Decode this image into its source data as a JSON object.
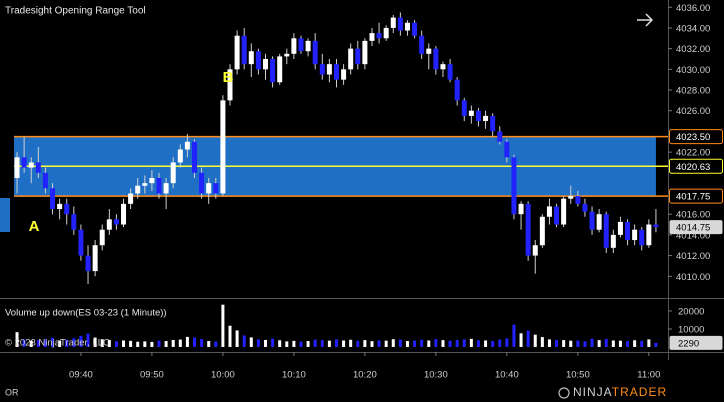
{
  "chart_data": {
    "type": "candlestick",
    "title": "Tradesight Opening Range Tool",
    "annotations": [
      "A",
      "B"
    ],
    "x": [
      571,
      572,
      573,
      574,
      575,
      576,
      577,
      578,
      579,
      580,
      581,
      582,
      583,
      584,
      585,
      586,
      587,
      588,
      589,
      590,
      591,
      592,
      593,
      594,
      595,
      596,
      597,
      598,
      599,
      600,
      601,
      602,
      603,
      604,
      605,
      606,
      607,
      608,
      609,
      610,
      611,
      612,
      613,
      614,
      615,
      616,
      617,
      618,
      619,
      620,
      621,
      622,
      623,
      624,
      625,
      626,
      627,
      628,
      629,
      630,
      631,
      632,
      633,
      634,
      635,
      636,
      637,
      638,
      639,
      640,
      641,
      642,
      643,
      644,
      645,
      646,
      647,
      648,
      649,
      650,
      651,
      652,
      653,
      654,
      655,
      656,
      657,
      658,
      659,
      660,
      661
    ],
    "xlim": [
      568.6,
      662.7
    ],
    "xticks": [
      {
        "value": 580,
        "label": "09:40"
      },
      {
        "value": 590,
        "label": "09:50"
      },
      {
        "value": 600,
        "label": "10:00"
      },
      {
        "value": 610,
        "label": "10:10"
      },
      {
        "value": 620,
        "label": "10:20"
      },
      {
        "value": 630,
        "label": "10:30"
      },
      {
        "value": 640,
        "label": "10:40"
      },
      {
        "value": 650,
        "label": "10:50"
      },
      {
        "value": 660,
        "label": "11:00"
      }
    ],
    "ylim": [
      4007.9,
      4036.7
    ],
    "yticks": [
      {
        "value": 4010,
        "label": "4010.00"
      },
      {
        "value": 4012,
        "label": "4012.00"
      },
      {
        "value": 4014,
        "label": "4014.00"
      },
      {
        "value": 4016,
        "label": "4016.00"
      },
      {
        "value": 4022,
        "label": "4022.00"
      },
      {
        "value": 4026,
        "label": "4026.00"
      },
      {
        "value": 4028,
        "label": "4028.00"
      },
      {
        "value": 4030,
        "label": "4030.00"
      },
      {
        "value": 4032,
        "label": "4032.00"
      },
      {
        "value": 4034,
        "label": "4034.00"
      },
      {
        "value": 4036,
        "label": "4036.00"
      }
    ],
    "open": [
      4019.5,
      4021.5,
      4020.5,
      4021,
      4020,
      4018.5,
      4016.5,
      4017,
      4016,
      4014.5,
      4012,
      4010.5,
      4013,
      4014.5,
      4015.5,
      4015,
      4017,
      4018,
      4018.75,
      4019,
      4019.5,
      4018,
      4019,
      4021,
      4022.25,
      4023,
      4020,
      4018,
      4019,
      4018,
      4027,
      4030,
      4033.25,
      4030.5,
      4031.75,
      4030,
      4031,
      4028.75,
      4031.25,
      4031.5,
      4033,
      4031.75,
      4032.75,
      4030.5,
      4029.5,
      4030.5,
      4029,
      4030,
      4032,
      4030.5,
      4032.75,
      4033.5,
      4033,
      4034,
      4035,
      4033.75,
      4034.5,
      4033.25,
      4031.5,
      4032,
      4030,
      4030.5,
      4029,
      4027,
      4025.5,
      4026,
      4025,
      4025.5,
      4024,
      4023,
      4021.5,
      4016,
      4017,
      4012,
      4013,
      4015.75,
      4016.75,
      4015,
      4017.5,
      4017.75,
      4017,
      4016.25,
      4014.5,
      4016,
      4012.75,
      4014,
      4015.25,
      4013.5,
      4014.5,
      4013,
      4015
    ],
    "high": [
      4022,
      4023.5,
      4021.5,
      4022.5,
      4020.5,
      4019,
      4017.5,
      4017.5,
      4016.75,
      4015,
      4013,
      4013.5,
      4015,
      4016.5,
      4016,
      4017.5,
      4018.5,
      4019.5,
      4019.75,
      4020.25,
      4020,
      4019.5,
      4021.5,
      4022.75,
      4023.75,
      4023.25,
      4020.5,
      4019.5,
      4019.5,
      4027.5,
      4030.5,
      4033.75,
      4034,
      4032.5,
      4032,
      4031.5,
      4031.25,
      4031.5,
      4032,
      4033.5,
      4033.25,
      4033,
      4033.5,
      4031.5,
      4031,
      4031,
      4030.5,
      4032.5,
      4032.75,
      4033,
      4034,
      4034.5,
      4034.25,
      4035.25,
      4035.5,
      4034.75,
      4034.75,
      4033.75,
      4032.5,
      4032.25,
      4030.75,
      4031,
      4029.25,
      4027.25,
      4026.5,
      4026.25,
      4026,
      4025.75,
      4024.5,
      4023.25,
      4021.75,
      4017.25,
      4017.25,
      4013.5,
      4016,
      4017.5,
      4017,
      4017.75,
      4018.75,
      4018.25,
      4017.5,
      4016.75,
      4016.5,
      4016.25,
      4014.5,
      4015.75,
      4015.5,
      4015,
      4014.75,
      4015.5,
      4016.5
    ],
    "low": [
      4018,
      4020,
      4019,
      4019.5,
      4018,
      4016,
      4015.5,
      4015,
      4014,
      4011.5,
      4009.25,
      4010,
      4012.5,
      4014,
      4014.5,
      4014.75,
      4016.5,
      4017.5,
      4018,
      4018.25,
      4017.5,
      4016.5,
      4018.5,
      4020.5,
      4021.5,
      4019.5,
      4017.5,
      4017,
      4017.5,
      4017.75,
      4026.5,
      4029.5,
      4030,
      4029.25,
      4029.5,
      4029,
      4028.25,
      4028.5,
      4030.5,
      4031,
      4031.5,
      4031.25,
      4030,
      4029,
      4028.75,
      4028.25,
      4028.5,
      4029.5,
      4030,
      4030,
      4032.25,
      4032.5,
      4032.75,
      4033.5,
      4033.25,
      4033.25,
      4033,
      4031,
      4030,
      4029.5,
      4029.25,
      4028.75,
      4026.5,
      4025,
      4024.75,
      4024.5,
      4024.25,
      4023.5,
      4022.75,
      4021,
      4015.5,
      4014.5,
      4011.5,
      4010.25,
      4012.75,
      4015,
      4014.75,
      4014.75,
      4017,
      4016.75,
      4015.75,
      4014,
      4014.25,
      4012.25,
      4012.25,
      4013.75,
      4013,
      4013,
      4012.5,
      4012.75,
      4014.25
    ],
    "close": [
      4021.5,
      4020.5,
      4021,
      4020,
      4018.5,
      4016.5,
      4017,
      4016,
      4014.5,
      4012,
      4010.5,
      4013,
      4014.5,
      4015.5,
      4015,
      4017,
      4018,
      4018.75,
      4019,
      4019.5,
      4018,
      4019,
      4021,
      4022.25,
      4023,
      4020,
      4018,
      4019,
      4018,
      4027,
      4030,
      4033.25,
      4030.5,
      4031.75,
      4030,
      4031,
      4028.75,
      4031.25,
      4031.5,
      4033,
      4031.75,
      4032.75,
      4030.5,
      4029.5,
      4030.5,
      4029,
      4030,
      4032,
      4030.5,
      4032.75,
      4033.5,
      4033,
      4034,
      4035,
      4033.75,
      4034.5,
      4033.25,
      4031.5,
      4032,
      4030,
      4030.5,
      4029,
      4027,
      4025.5,
      4026,
      4025,
      4025.5,
      4024,
      4023,
      4021.5,
      4016,
      4017,
      4012,
      4013,
      4015.75,
      4016.75,
      4015,
      4017.5,
      4017.75,
      4017,
      4016.25,
      4014.5,
      4016,
      4012.75,
      4014,
      4015.25,
      4013.5,
      4014.5,
      4013,
      4015,
      4014.75
    ],
    "up_color": "#ffffff",
    "down_color": "#2222ff",
    "wick_color": "#d0d0d0",
    "zone_color": "#1f6fc5",
    "levels": [
      {
        "value": 4023.5,
        "label": "4023.50",
        "color": "#ff8c1a"
      },
      {
        "value": 4020.63,
        "label": "4020.63",
        "color": "#ffff33"
      },
      {
        "value": 4017.75,
        "label": "4017.75",
        "color": "#ff8c1a"
      }
    ],
    "volume": {
      "title": "Volume up down(ES 03-23 (1 Minute))",
      "values": [
        8200,
        4100,
        3500,
        3800,
        4200,
        5100,
        3600,
        4000,
        4800,
        6200,
        7400,
        5200,
        4300,
        3900,
        3200,
        3600,
        3400,
        2900,
        3100,
        2800,
        3500,
        3300,
        3900,
        4100,
        5600,
        5200,
        4400,
        3300,
        3000,
        23500,
        11800,
        9200,
        6400,
        5300,
        4200,
        3900,
        4600,
        3700,
        3100,
        3400,
        3000,
        3300,
        4100,
        3800,
        3500,
        4200,
        3600,
        4000,
        3400,
        3800,
        3200,
        3600,
        3500,
        4300,
        4100,
        3300,
        3500,
        4000,
        3600,
        4400,
        3800,
        3500,
        3900,
        4200,
        4500,
        3700,
        3600,
        3300,
        4100,
        4800,
        12400,
        7600,
        9100,
        6800,
        5500,
        4200,
        3900,
        3800,
        3500,
        3600,
        3200,
        4600,
        3800,
        4400,
        3600,
        3500,
        3300,
        3700,
        3400,
        4200,
        2290
      ],
      "ylim": [
        -2800,
        26100
      ],
      "yticks": [
        10000,
        20000
      ]
    },
    "copyright": "© 2023 NinjaTrader, LLC",
    "footer_label": "OR",
    "logo": [
      "NINJA",
      "TRADER"
    ]
  }
}
